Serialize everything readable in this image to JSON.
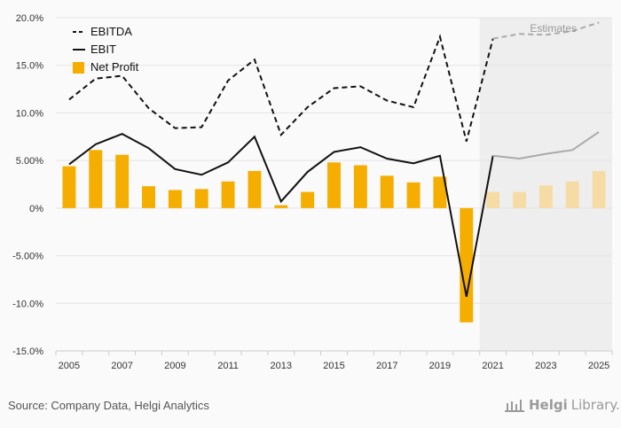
{
  "chart_data": {
    "type": "bar+line",
    "x": [
      2005,
      2006,
      2007,
      2008,
      2009,
      2010,
      2011,
      2012,
      2013,
      2014,
      2015,
      2016,
      2017,
      2018,
      2019,
      2020,
      2021,
      2022,
      2023,
      2024,
      2025
    ],
    "tick_labels": [
      "2005",
      "2007",
      "2009",
      "2011",
      "2013",
      "2015",
      "2017",
      "2019",
      "2021",
      "2023",
      "2025"
    ],
    "y_tick_labels": [
      "20.0%",
      "15.0%",
      "10.0%",
      "5.00%",
      "0%",
      "-5.00%",
      "-10.0%",
      "-15.0%"
    ],
    "y_ticks": [
      20,
      15,
      10,
      5,
      0,
      -5,
      -10,
      -15
    ],
    "ylim": [
      -15,
      20
    ],
    "grid": true,
    "legend_position": "top-left",
    "estimate_from": 2021,
    "estimates_label": "Estimates",
    "series": [
      {
        "name": "EBITDA",
        "kind": "line",
        "style": "dashed",
        "color": "#111111",
        "estimate_color": "#aaaaaa",
        "values": [
          11.4,
          13.6,
          13.9,
          10.5,
          8.4,
          8.5,
          13.4,
          15.6,
          7.7,
          10.6,
          12.6,
          12.8,
          11.3,
          10.6,
          18.0,
          7.0,
          17.8,
          18.3,
          18.2,
          18.6,
          19.5
        ]
      },
      {
        "name": "EBIT",
        "kind": "line",
        "style": "solid",
        "color": "#111111",
        "estimate_color": "#aaaaaa",
        "values": [
          4.6,
          6.7,
          7.8,
          6.3,
          4.1,
          3.5,
          4.8,
          7.5,
          0.7,
          3.8,
          5.9,
          6.4,
          5.2,
          4.7,
          5.5,
          -9.3,
          5.5,
          5.2,
          5.7,
          6.1,
          8.0
        ]
      },
      {
        "name": "Net Profit",
        "kind": "bar",
        "color": "#f5ad00",
        "estimate_color": "#f6dca4",
        "values": [
          4.4,
          6.1,
          5.6,
          2.3,
          1.9,
          2.0,
          2.8,
          3.9,
          0.3,
          1.7,
          4.8,
          4.5,
          3.4,
          2.7,
          3.3,
          -12.0,
          1.7,
          1.7,
          2.4,
          2.8,
          3.9
        ]
      }
    ]
  },
  "footer": {
    "source": "Source: Company Data, Helgi Analytics",
    "logo_brand": "Helgi",
    "logo_suffix": "Library."
  }
}
